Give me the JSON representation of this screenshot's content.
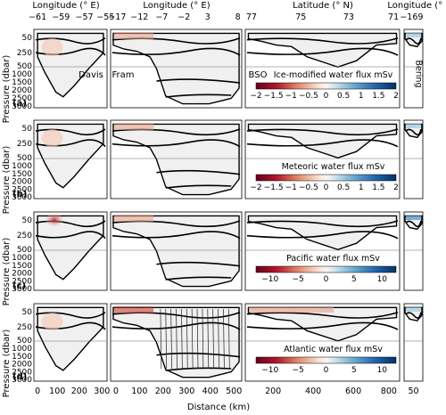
{
  "chart_data": {
    "type": "figure",
    "top_axes": [
      {
        "title": "Longitude (° E)",
        "ticks": [
          "−61",
          "−59",
          "−57",
          "−55"
        ]
      },
      {
        "title": "Longitude (° E)",
        "ticks": [
          "−17",
          "−12",
          "−7",
          "−2",
          "3",
          "8"
        ]
      },
      {
        "title": "Latitude (° N)",
        "ticks": [
          "77",
          "75",
          "73",
          "71"
        ]
      },
      {
        "title": "Longitude (° E)",
        "ticks": [
          "−169"
        ]
      }
    ],
    "section_names": [
      "Davis",
      "Fram",
      "BSO",
      "Bering"
    ],
    "ylabel": "Pressure (dbar)",
    "yticks": [
      "50",
      "250",
      "500",
      "1000",
      "1500",
      "2000",
      "2500",
      "3000"
    ],
    "xlabel": "Distance (km)",
    "bottom_axes": [
      {
        "ticks": [
          "0",
          "100",
          "200",
          "300"
        ]
      },
      {
        "ticks": [
          "0",
          "100",
          "200",
          "300",
          "400",
          "500"
        ]
      },
      {
        "ticks": [
          "200",
          "400",
          "600",
          "800"
        ]
      },
      {
        "ticks": [
          "50"
        ]
      }
    ],
    "rows": [
      {
        "panel": "(a)",
        "title": "Ice-modified water flux mSv",
        "cbar_ticks": [
          "−2",
          "−1.5",
          "−1",
          "−0.5",
          "0",
          "0.5",
          "1",
          "1.5",
          "2"
        ]
      },
      {
        "panel": "(b)",
        "title": "Meteoric water flux mSv",
        "cbar_ticks": [
          "−2",
          "−1.5",
          "−1",
          "−0.5",
          "0",
          "0.5",
          "1",
          "1.5",
          "2"
        ]
      },
      {
        "panel": "(c)",
        "title": "Pacific water flux mSv",
        "cbar_ticks": [
          "−10",
          "−5",
          "0",
          "5",
          "10"
        ]
      },
      {
        "panel": "(d)",
        "title": "Atlantic water flux mSv",
        "cbar_ticks": [
          "−10",
          "−5",
          "0",
          "5",
          "10"
        ]
      }
    ]
  },
  "colors": {
    "seafloor": "#f0f0f0",
    "red": "#b2182b",
    "blue": "#2166ac",
    "grid": "#999999"
  }
}
